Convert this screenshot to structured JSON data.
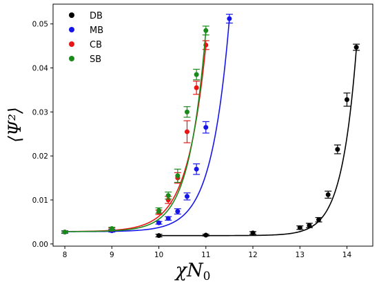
{
  "chart_data": {
    "type": "scatter",
    "xlabel": "χN",
    "xlabel_sub": "0",
    "ylabel": "⟨Ψ²⟩",
    "xlim": [
      7.75,
      14.55
    ],
    "ylim": [
      -0.0005,
      0.0545
    ],
    "x_ticks": [
      8,
      9,
      10,
      11,
      12,
      13,
      14
    ],
    "y_ticks": [
      0.0,
      0.01,
      0.02,
      0.03,
      0.04,
      0.05
    ],
    "y_tick_labels": [
      "0.00",
      "0.01",
      "0.02",
      "0.03",
      "0.04",
      "0.05"
    ],
    "grid": false,
    "legend_position": "top-left",
    "series": [
      {
        "name": "DB",
        "color": "#000000",
        "points": [
          {
            "x": 10.0,
            "y": 0.0019,
            "err": 0.0003
          },
          {
            "x": 11.0,
            "y": 0.002,
            "err": 0.0002
          },
          {
            "x": 12.0,
            "y": 0.0025,
            "err": 0.0003
          },
          {
            "x": 13.0,
            "y": 0.0037,
            "err": 0.0004
          },
          {
            "x": 13.2,
            "y": 0.0042,
            "err": 0.0005
          },
          {
            "x": 13.4,
            "y": 0.0055,
            "err": 0.0005
          },
          {
            "x": 13.6,
            "y": 0.0112,
            "err": 0.0008
          },
          {
            "x": 13.8,
            "y": 0.0215,
            "err": 0.001
          },
          {
            "x": 14.0,
            "y": 0.0328,
            "err": 0.0015
          },
          {
            "x": 14.2,
            "y": 0.0447,
            "err": 0.0007
          }
        ],
        "fit": {
          "floor": 0.0019,
          "amp": 0.0424,
          "center": 14.2,
          "width": 0.312
        }
      },
      {
        "name": "MB",
        "color": "#1515e8",
        "points": [
          {
            "x": 8.0,
            "y": 0.0027,
            "err": 0.0003
          },
          {
            "x": 9.0,
            "y": 0.003,
            "err": 0.0003
          },
          {
            "x": 10.0,
            "y": 0.0048,
            "err": 0.0003
          },
          {
            "x": 10.2,
            "y": 0.0058,
            "err": 0.0004
          },
          {
            "x": 10.4,
            "y": 0.0074,
            "err": 0.0006
          },
          {
            "x": 10.6,
            "y": 0.0108,
            "err": 0.0008
          },
          {
            "x": 10.8,
            "y": 0.017,
            "err": 0.0012
          },
          {
            "x": 11.0,
            "y": 0.0265,
            "err": 0.0013
          },
          {
            "x": 11.5,
            "y": 0.0512,
            "err": 0.001
          }
        ],
        "fit": {
          "floor": 0.0028,
          "amp": 0.0484,
          "center": 11.5,
          "width": 0.38
        }
      },
      {
        "name": "CB",
        "color": "#e81515",
        "points": [
          {
            "x": 8.0,
            "y": 0.0027,
            "err": 0.0002
          },
          {
            "x": 9.0,
            "y": 0.0033,
            "err": 0.0003
          },
          {
            "x": 10.0,
            "y": 0.0072,
            "err": 0.0005
          },
          {
            "x": 10.2,
            "y": 0.01,
            "err": 0.0008
          },
          {
            "x": 10.4,
            "y": 0.015,
            "err": 0.0012
          },
          {
            "x": 10.6,
            "y": 0.0255,
            "err": 0.0025
          },
          {
            "x": 10.8,
            "y": 0.0355,
            "err": 0.0015
          },
          {
            "x": 11.0,
            "y": 0.0452,
            "err": 0.001
          }
        ],
        "fit": {
          "floor": 0.0028,
          "amp": 0.0424,
          "center": 11.0,
          "width": 0.4
        }
      },
      {
        "name": "SB",
        "color": "#1a8a1a",
        "points": [
          {
            "x": 8.0,
            "y": 0.0027,
            "err": 0.0002
          },
          {
            "x": 9.0,
            "y": 0.0035,
            "err": 0.0003
          },
          {
            "x": 10.0,
            "y": 0.0076,
            "err": 0.0006
          },
          {
            "x": 10.2,
            "y": 0.011,
            "err": 0.0008
          },
          {
            "x": 10.4,
            "y": 0.0155,
            "err": 0.0015
          },
          {
            "x": 10.6,
            "y": 0.03,
            "err": 0.0012
          },
          {
            "x": 10.8,
            "y": 0.0385,
            "err": 0.0012
          },
          {
            "x": 11.0,
            "y": 0.0485,
            "err": 0.001
          }
        ],
        "fit": {
          "floor": 0.0028,
          "amp": 0.0457,
          "center": 11.0,
          "width": 0.36
        }
      }
    ]
  }
}
